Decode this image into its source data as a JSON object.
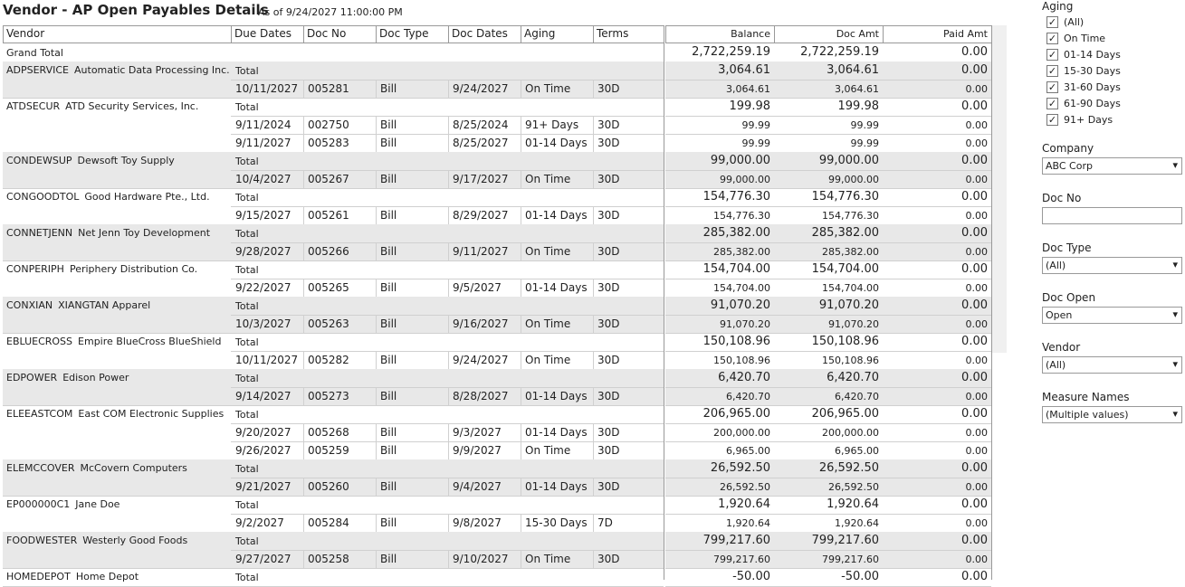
{
  "header": {
    "title": "Vendor - AP Open Payables Details",
    "as_of": "As of 9/24/2027 11:00:00 PM"
  },
  "table": {
    "columns": [
      "Vendor",
      "Due Dates",
      "Doc No",
      "Doc Type",
      "Doc Dates",
      "Aging",
      "Terms"
    ],
    "measures": [
      "Balance",
      "Doc Amt",
      "Paid Amt"
    ],
    "grand_total": {
      "label": "Grand Total",
      "values": [
        "2,722,259.19",
        "2,722,259.19",
        "0.00"
      ]
    },
    "total_label": "Total",
    "vendors": [
      {
        "code": "ADPSERVICE",
        "name": "Automatic Data Processing Inc.",
        "totals": [
          "3,064.61",
          "3,064.61",
          "0.00"
        ],
        "docs": [
          [
            "10/11/2027",
            "005281",
            "Bill",
            "9/24/2027",
            "On Time",
            "30D",
            "3,064.61",
            "3,064.61",
            "0.00"
          ]
        ]
      },
      {
        "code": "ATDSECUR",
        "name": "ATD Security Services, Inc.",
        "totals": [
          "199.98",
          "199.98",
          "0.00"
        ],
        "docs": [
          [
            "9/11/2024",
            "002750",
            "Bill",
            "8/25/2024",
            "91+ Days",
            "30D",
            "99.99",
            "99.99",
            "0.00"
          ],
          [
            "9/11/2027",
            "005283",
            "Bill",
            "8/25/2027",
            "01-14 Days",
            "30D",
            "99.99",
            "99.99",
            "0.00"
          ]
        ]
      },
      {
        "code": "CONDEWSUP",
        "name": "Dewsoft Toy Supply",
        "totals": [
          "99,000.00",
          "99,000.00",
          "0.00"
        ],
        "docs": [
          [
            "10/4/2027",
            "005267",
            "Bill",
            "9/17/2027",
            "On Time",
            "30D",
            "99,000.00",
            "99,000.00",
            "0.00"
          ]
        ]
      },
      {
        "code": "CONGOODTOL",
        "name": "Good Hardware Pte., Ltd.",
        "totals": [
          "154,776.30",
          "154,776.30",
          "0.00"
        ],
        "docs": [
          [
            "9/15/2027",
            "005261",
            "Bill",
            "8/29/2027",
            "01-14 Days",
            "30D",
            "154,776.30",
            "154,776.30",
            "0.00"
          ]
        ]
      },
      {
        "code": "CONNETJENN",
        "name": "Net Jenn Toy Development",
        "totals": [
          "285,382.00",
          "285,382.00",
          "0.00"
        ],
        "docs": [
          [
            "9/28/2027",
            "005266",
            "Bill",
            "9/11/2027",
            "On Time",
            "30D",
            "285,382.00",
            "285,382.00",
            "0.00"
          ]
        ]
      },
      {
        "code": "CONPERIPH",
        "name": "Periphery Distribution Co.",
        "totals": [
          "154,704.00",
          "154,704.00",
          "0.00"
        ],
        "docs": [
          [
            "9/22/2027",
            "005265",
            "Bill",
            "9/5/2027",
            "01-14 Days",
            "30D",
            "154,704.00",
            "154,704.00",
            "0.00"
          ]
        ]
      },
      {
        "code": "CONXIAN",
        "name": "XIANGTAN Apparel",
        "totals": [
          "91,070.20",
          "91,070.20",
          "0.00"
        ],
        "docs": [
          [
            "10/3/2027",
            "005263",
            "Bill",
            "9/16/2027",
            "On Time",
            "30D",
            "91,070.20",
            "91,070.20",
            "0.00"
          ]
        ]
      },
      {
        "code": "EBLUECROSS",
        "name": "Empire BlueCross BlueShield",
        "totals": [
          "150,108.96",
          "150,108.96",
          "0.00"
        ],
        "docs": [
          [
            "10/11/2027",
            "005282",
            "Bill",
            "9/24/2027",
            "On Time",
            "30D",
            "150,108.96",
            "150,108.96",
            "0.00"
          ]
        ]
      },
      {
        "code": "EDPOWER",
        "name": "Edison Power",
        "totals": [
          "6,420.70",
          "6,420.70",
          "0.00"
        ],
        "docs": [
          [
            "9/14/2027",
            "005273",
            "Bill",
            "8/28/2027",
            "01-14 Days",
            "30D",
            "6,420.70",
            "6,420.70",
            "0.00"
          ]
        ]
      },
      {
        "code": "ELEEASTCOM",
        "name": "East COM Electronic Supplies",
        "totals": [
          "206,965.00",
          "206,965.00",
          "0.00"
        ],
        "docs": [
          [
            "9/20/2027",
            "005268",
            "Bill",
            "9/3/2027",
            "01-14 Days",
            "30D",
            "200,000.00",
            "200,000.00",
            "0.00"
          ],
          [
            "9/26/2027",
            "005259",
            "Bill",
            "9/9/2027",
            "On Time",
            "30D",
            "6,965.00",
            "6,965.00",
            "0.00"
          ]
        ]
      },
      {
        "code": "ELEMCCOVER",
        "name": "McCovern Computers",
        "totals": [
          "26,592.50",
          "26,592.50",
          "0.00"
        ],
        "docs": [
          [
            "9/21/2027",
            "005260",
            "Bill",
            "9/4/2027",
            "01-14 Days",
            "30D",
            "26,592.50",
            "26,592.50",
            "0.00"
          ]
        ]
      },
      {
        "code": "EP000000C1",
        "name": "Jane Doe",
        "totals": [
          "1,920.64",
          "1,920.64",
          "0.00"
        ],
        "docs": [
          [
            "9/2/2027",
            "005284",
            "Bill",
            "9/8/2027",
            "15-30 Days",
            "7D",
            "1,920.64",
            "1,920.64",
            "0.00"
          ]
        ]
      },
      {
        "code": "FOODWESTER",
        "name": "Westerly Good Foods",
        "totals": [
          "799,217.60",
          "799,217.60",
          "0.00"
        ],
        "docs": [
          [
            "9/27/2027",
            "005258",
            "Bill",
            "9/10/2027",
            "On Time",
            "30D",
            "799,217.60",
            "799,217.60",
            "0.00"
          ]
        ]
      },
      {
        "code": "HOMEDEPOT",
        "name": "Home Depot",
        "totals": [
          "-50.00",
          "-50.00",
          "0.00"
        ],
        "docs": []
      }
    ]
  },
  "filters": {
    "aging": {
      "label": "Aging",
      "options": [
        "(All)",
        "On Time",
        "01-14 Days",
        "15-30 Days",
        "31-60 Days",
        "61-90 Days",
        "91+ Days"
      ]
    },
    "dropdowns": [
      {
        "label": "Company",
        "value": "ABC Corp"
      },
      {
        "label": "Doc No"
      },
      {
        "label": "Doc Type",
        "value": "(All)"
      },
      {
        "label": "Doc Open",
        "value": "Open"
      },
      {
        "label": "Vendor",
        "value": "(All)"
      },
      {
        "label": "Measure Names",
        "value": "(Multiple values)"
      }
    ]
  }
}
